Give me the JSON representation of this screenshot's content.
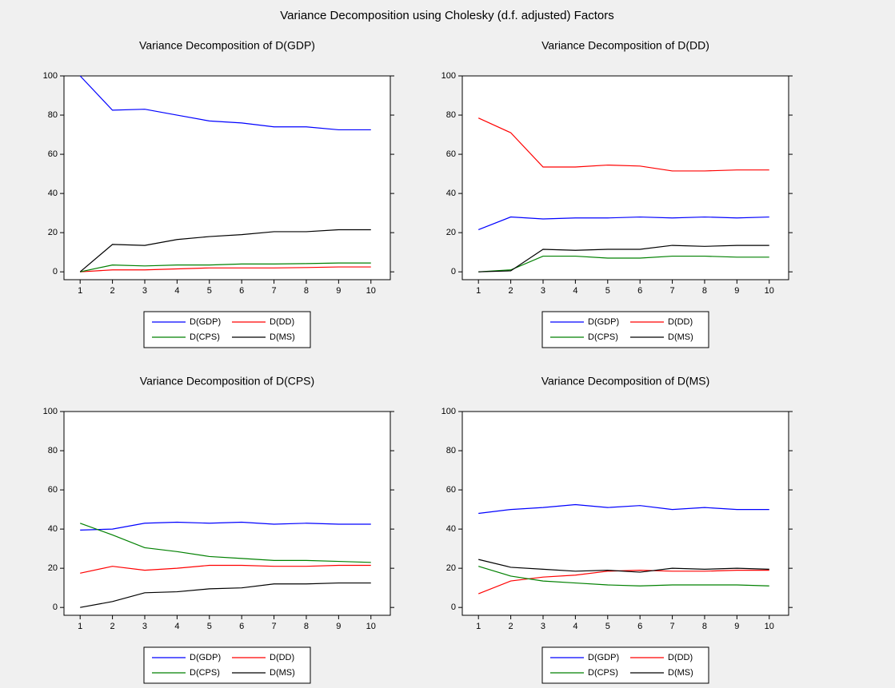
{
  "title": "Variance Decomposition using Cholesky (d.f. adjusted) Factors",
  "chart_data": [
    {
      "type": "line",
      "title": "Variance Decomposition of D(GDP)",
      "x": [
        1,
        2,
        3,
        4,
        5,
        6,
        7,
        8,
        9,
        10
      ],
      "xlim": [
        0.5,
        10.6
      ],
      "xticks": [
        1,
        2,
        3,
        4,
        5,
        6,
        7,
        8,
        9,
        10
      ],
      "ylim": [
        -4,
        100
      ],
      "yticks": [
        0,
        20,
        40,
        60,
        80,
        100
      ],
      "grid": false,
      "series": [
        {
          "name": "D(GDP)",
          "color": "#0000ff",
          "values": [
            100,
            82.5,
            83,
            80,
            77,
            76,
            74,
            74,
            72.5,
            72.5
          ]
        },
        {
          "name": "D(DD)",
          "color": "#ff0000",
          "values": [
            0,
            1,
            1,
            1.5,
            2,
            2,
            2,
            2.2,
            2.5,
            2.5
          ]
        },
        {
          "name": "D(CPS)",
          "color": "#008000",
          "values": [
            0,
            3.5,
            3,
            3.5,
            3.5,
            4,
            4,
            4.2,
            4.5,
            4.5
          ]
        },
        {
          "name": "D(MS)",
          "color": "#000000",
          "values": [
            0,
            14,
            13.5,
            16.5,
            18,
            19,
            20.5,
            20.5,
            21.5,
            21.5
          ]
        }
      ]
    },
    {
      "type": "line",
      "title": "Variance Decomposition of D(DD)",
      "x": [
        1,
        2,
        3,
        4,
        5,
        6,
        7,
        8,
        9,
        10
      ],
      "xlim": [
        0.5,
        10.6
      ],
      "xticks": [
        1,
        2,
        3,
        4,
        5,
        6,
        7,
        8,
        9,
        10
      ],
      "ylim": [
        -4,
        100
      ],
      "yticks": [
        0,
        20,
        40,
        60,
        80,
        100
      ],
      "grid": false,
      "series": [
        {
          "name": "D(GDP)",
          "color": "#0000ff",
          "values": [
            21.5,
            28,
            27,
            27.5,
            27.5,
            28,
            27.5,
            28,
            27.5,
            28
          ]
        },
        {
          "name": "D(DD)",
          "color": "#ff0000",
          "values": [
            78.5,
            71,
            53.5,
            53.5,
            54.5,
            54,
            51.5,
            51.5,
            52,
            52
          ]
        },
        {
          "name": "D(CPS)",
          "color": "#008000",
          "values": [
            0,
            1,
            8,
            8,
            7,
            7,
            8,
            8,
            7.5,
            7.5
          ]
        },
        {
          "name": "D(MS)",
          "color": "#000000",
          "values": [
            0,
            0.5,
            11.5,
            11,
            11.5,
            11.5,
            13.5,
            13,
            13.5,
            13.5
          ]
        }
      ]
    },
    {
      "type": "line",
      "title": "Variance Decomposition of D(CPS)",
      "x": [
        1,
        2,
        3,
        4,
        5,
        6,
        7,
        8,
        9,
        10
      ],
      "xlim": [
        0.5,
        10.6
      ],
      "xticks": [
        1,
        2,
        3,
        4,
        5,
        6,
        7,
        8,
        9,
        10
      ],
      "ylim": [
        -4,
        100
      ],
      "yticks": [
        0,
        20,
        40,
        60,
        80,
        100
      ],
      "grid": false,
      "series": [
        {
          "name": "D(GDP)",
          "color": "#0000ff",
          "values": [
            39.5,
            40,
            43,
            43.5,
            43,
            43.5,
            42.5,
            43,
            42.5,
            42.5
          ]
        },
        {
          "name": "D(DD)",
          "color": "#ff0000",
          "values": [
            17.5,
            21,
            19,
            20,
            21.5,
            21.5,
            21,
            21,
            21.5,
            21.5
          ]
        },
        {
          "name": "D(CPS)",
          "color": "#008000",
          "values": [
            43,
            37,
            30.5,
            28.5,
            26,
            25,
            24,
            24,
            23.5,
            23
          ]
        },
        {
          "name": "D(MS)",
          "color": "#000000",
          "values": [
            0,
            3,
            7.5,
            8,
            9.5,
            10,
            12,
            12,
            12.5,
            12.5
          ]
        }
      ]
    },
    {
      "type": "line",
      "title": "Variance Decomposition of D(MS)",
      "x": [
        1,
        2,
        3,
        4,
        5,
        6,
        7,
        8,
        9,
        10
      ],
      "xlim": [
        0.5,
        10.6
      ],
      "xticks": [
        1,
        2,
        3,
        4,
        5,
        6,
        7,
        8,
        9,
        10
      ],
      "ylim": [
        -4,
        100
      ],
      "yticks": [
        0,
        20,
        40,
        60,
        80,
        100
      ],
      "grid": false,
      "series": [
        {
          "name": "D(GDP)",
          "color": "#0000ff",
          "values": [
            48,
            50,
            51,
            52.5,
            51,
            52,
            50,
            51,
            50,
            50
          ]
        },
        {
          "name": "D(DD)",
          "color": "#ff0000",
          "values": [
            7,
            13.5,
            15.5,
            16.5,
            18.5,
            19,
            18.5,
            18.5,
            19,
            19
          ]
        },
        {
          "name": "D(CPS)",
          "color": "#008000",
          "values": [
            21,
            16,
            13.5,
            12.5,
            11.5,
            11,
            11.5,
            11.5,
            11.5,
            11
          ]
        },
        {
          "name": "D(MS)",
          "color": "#000000",
          "values": [
            24.5,
            20.5,
            19.5,
            18.5,
            19,
            18,
            20,
            19.5,
            20,
            19.5
          ]
        }
      ]
    }
  ]
}
